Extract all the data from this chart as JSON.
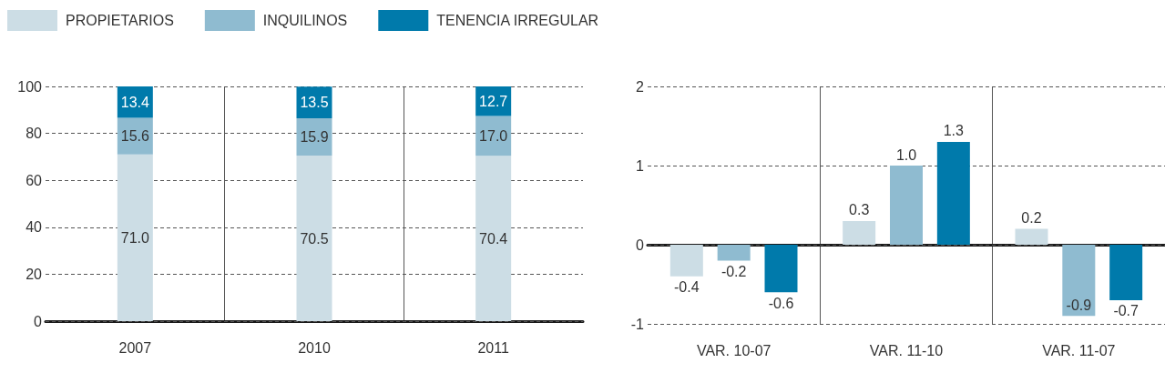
{
  "chart_data": [
    {
      "type": "bar",
      "stacked": true,
      "categories": [
        "2007",
        "2010",
        "2011"
      ],
      "series": [
        {
          "name": "PROPIETARIOS",
          "color": "#ccdde5",
          "values": [
            71.0,
            70.5,
            70.4
          ],
          "value_labels": [
            "71.0",
            "70.5",
            "70.4"
          ]
        },
        {
          "name": "INQUILINOS",
          "color": "#8fbbd0",
          "values": [
            15.6,
            15.9,
            17.0
          ],
          "value_labels": [
            "15.6",
            "15.9",
            "17.0"
          ]
        },
        {
          "name": "TENENCIA IRREGULAR",
          "color": "#007aab",
          "values": [
            13.4,
            13.5,
            12.7
          ],
          "value_labels": [
            "13.4",
            "13.5",
            "12.7"
          ]
        }
      ],
      "ylim": [
        0,
        100
      ],
      "yticks": [
        0,
        20,
        40,
        60,
        80,
        100
      ],
      "grid": true,
      "legend": "top left"
    },
    {
      "type": "bar",
      "categories": [
        "VAR. 10-07",
        "VAR. 11-10",
        "VAR. 11-07"
      ],
      "series": [
        {
          "color": "#ccdde5",
          "values": [
            -0.4,
            0.3,
            0.2
          ],
          "value_labels": [
            "-0.4",
            "0.3",
            "0.2"
          ]
        },
        {
          "color": "#8fbbd0",
          "values": [
            -0.2,
            1.0,
            -0.9
          ],
          "value_labels": [
            "-0.2",
            "1.0",
            "-0.9"
          ]
        },
        {
          "color": "#007aab",
          "values": [
            -0.6,
            1.3,
            -0.7
          ],
          "value_labels": [
            "-0.6",
            "1.3",
            "-0.7"
          ]
        }
      ],
      "ylim": [
        -1,
        2
      ],
      "yticks": [
        -1,
        0,
        1,
        2
      ],
      "grid": true
    }
  ]
}
